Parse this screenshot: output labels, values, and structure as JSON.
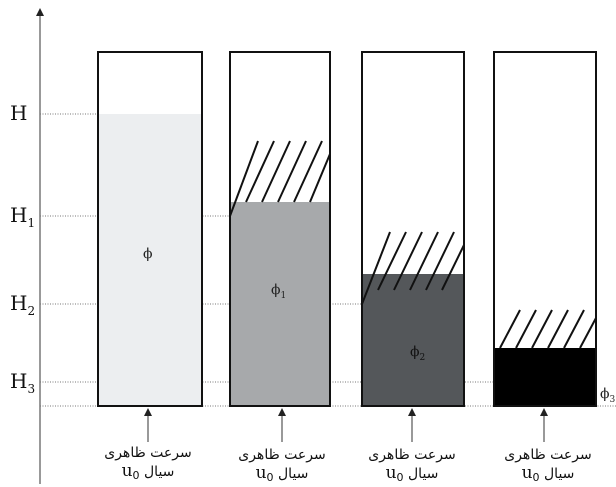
{
  "levels": [
    {
      "label": "H",
      "sub": ""
    },
    {
      "label": "H",
      "sub": "1"
    },
    {
      "label": "H",
      "sub": "2"
    },
    {
      "label": "H",
      "sub": "3"
    }
  ],
  "columns": [
    {
      "phi": "ϕ",
      "phi_sub": "",
      "fill": "#eceef0",
      "hatched": false
    },
    {
      "phi": "ϕ",
      "phi_sub": "1",
      "fill": "#a7a9ab",
      "hatched": true
    },
    {
      "phi": "ϕ",
      "phi_sub": "2",
      "fill": "#54575a",
      "hatched": true
    },
    {
      "phi": "ϕ",
      "phi_sub": "",
      "fill": "#000000",
      "hatched": true
    }
  ],
  "edge_label": {
    "phi": "ϕ",
    "sub": "3"
  },
  "captions": [
    {
      "line1": "سرعت ظاهری",
      "word": "سیال",
      "u": "u",
      "u_sub": "0"
    },
    {
      "line1": "سرعت ظاهری",
      "word": "سیال",
      "u": "u",
      "u_sub": "0"
    },
    {
      "line1": "سرعت ظاهری",
      "word": "سیال",
      "u": "u",
      "u_sub": "0"
    },
    {
      "line1": "سرعت ظاهری",
      "word": "سیال",
      "u": "u",
      "u_sub": "0"
    }
  ]
}
